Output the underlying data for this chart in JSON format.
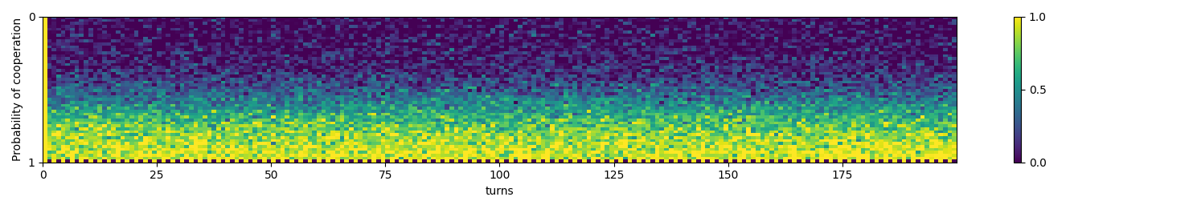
{
  "n_turns": 200,
  "n_prob": 50,
  "xlabel": "turns",
  "ylabel": "Probability of cooperation",
  "colormap": "viridis",
  "vmin": 0.0,
  "vmax": 1.0,
  "xticks": [
    0,
    25,
    50,
    75,
    100,
    125,
    150,
    175
  ],
  "ytick_labels": [
    "0",
    "1"
  ],
  "figsize": [
    14.89,
    2.61
  ],
  "dpi": 100,
  "noise_std": 0.13,
  "seed": 1234
}
